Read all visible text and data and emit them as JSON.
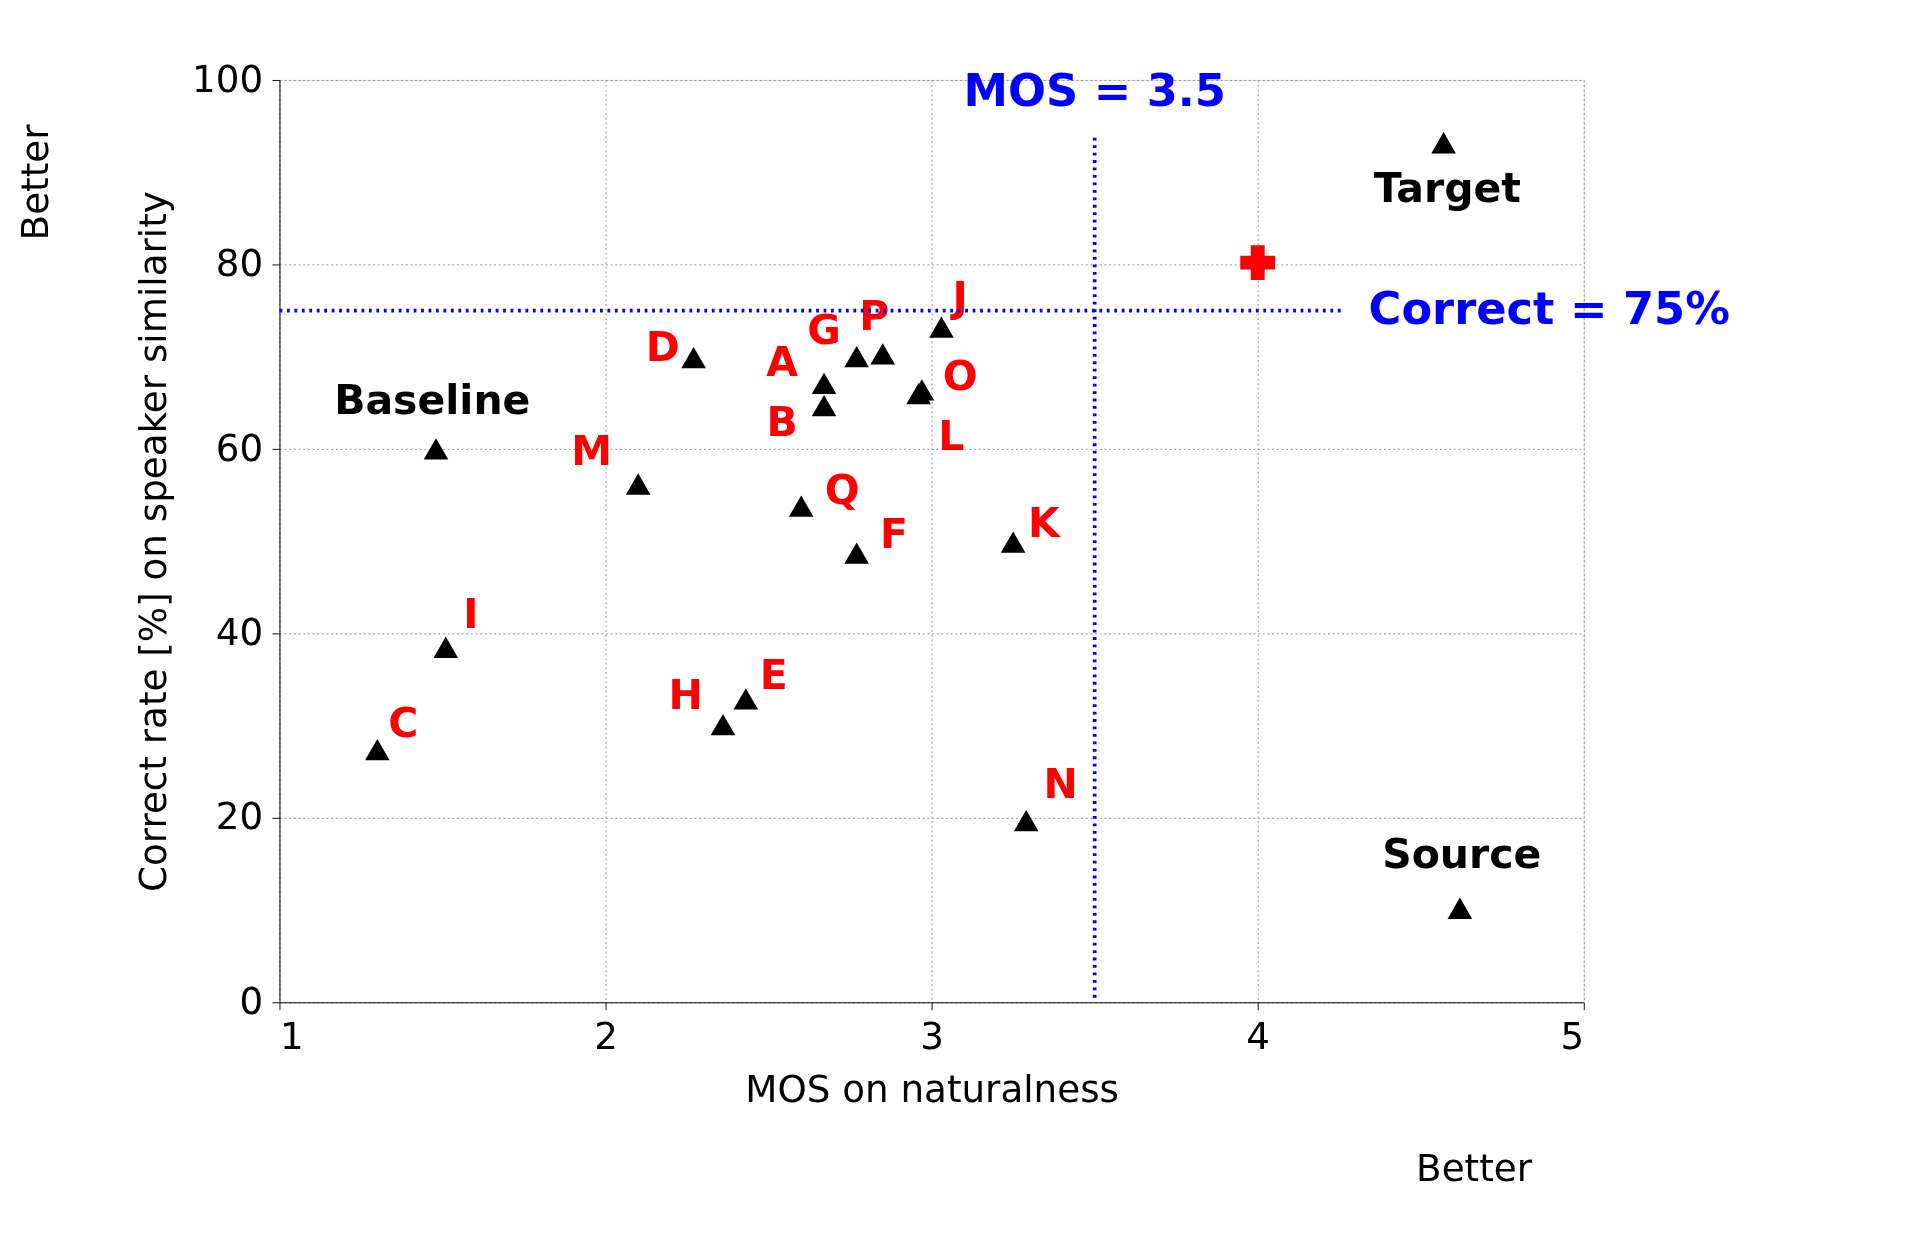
{
  "chart_data": {
    "type": "scatter",
    "xlabel": "MOS on naturalness",
    "ylabel": "Correct rate [%] on speaker similarity",
    "xlim": [
      1,
      5
    ],
    "ylim": [
      0,
      100
    ],
    "xticks": [
      1,
      2,
      3,
      4,
      5
    ],
    "yticks": [
      0,
      20,
      40,
      60,
      80,
      100
    ],
    "grid": true,
    "marker": "triangle",
    "series": [
      {
        "name": "Baseline",
        "color": "#000000",
        "x": [
          1.48
        ],
        "values": [
          60
        ]
      },
      {
        "name": "C",
        "color": "#000000",
        "x": [
          1.3
        ],
        "values": [
          27.4
        ]
      },
      {
        "name": "I",
        "color": "#000000",
        "x": [
          1.51
        ],
        "values": [
          38.5
        ]
      },
      {
        "name": "M",
        "color": "#000000",
        "x": [
          2.1
        ],
        "values": [
          56.2
        ]
      },
      {
        "name": "D",
        "color": "#000000",
        "x": [
          2.27
        ],
        "values": [
          69.9
        ]
      },
      {
        "name": "H",
        "color": "#000000",
        "x": [
          2.36
        ],
        "values": [
          30.1
        ]
      },
      {
        "name": "E",
        "color": "#000000",
        "x": [
          2.43
        ],
        "values": [
          32.9
        ]
      },
      {
        "name": "Q",
        "color": "#000000",
        "x": [
          2.6
        ],
        "values": [
          53.8
        ]
      },
      {
        "name": "A",
        "color": "#000000",
        "x": [
          2.67
        ],
        "values": [
          67.1
        ]
      },
      {
        "name": "B",
        "color": "#000000",
        "x": [
          2.67
        ],
        "values": [
          64.7
        ]
      },
      {
        "name": "G",
        "color": "#000000",
        "x": [
          2.77
        ],
        "values": [
          70.0
        ]
      },
      {
        "name": "P",
        "color": "#000000",
        "x": [
          2.85
        ],
        "values": [
          70.3
        ]
      },
      {
        "name": "F",
        "color": "#000000",
        "x": [
          2.77
        ],
        "values": [
          48.7
        ]
      },
      {
        "name": "O",
        "color": "#000000",
        "x": [
          2.97
        ],
        "values": [
          66.4
        ]
      },
      {
        "name": "L",
        "color": "#000000",
        "x": [
          2.96
        ],
        "values": [
          66.0
        ]
      },
      {
        "name": "J",
        "color": "#000000",
        "x": [
          3.03
        ],
        "values": [
          73.2
        ]
      },
      {
        "name": "K",
        "color": "#000000",
        "x": [
          3.25
        ],
        "values": [
          49.9
        ]
      },
      {
        "name": "N",
        "color": "#000000",
        "x": [
          3.29
        ],
        "values": [
          19.7
        ]
      },
      {
        "name": "Target",
        "color": "#000000",
        "x": [
          4.57
        ],
        "values": [
          93.2
        ]
      },
      {
        "name": "Source",
        "color": "#000000",
        "x": [
          4.62
        ],
        "values": [
          10.2
        ]
      },
      {
        "color": "#ff0000",
        "marker": "cross",
        "x": [
          4.0
        ],
        "values": [
          80.2
        ]
      }
    ],
    "ref_lines": [
      {
        "axis": "x",
        "value": 3.5,
        "label": "MOS = 3.5",
        "color": "#0000ff",
        "line_style": "dotted"
      },
      {
        "axis": "y",
        "value": 75,
        "label": "Correct = 75%",
        "color": "#0000ff",
        "line_style": "dotted"
      }
    ],
    "annotations": [
      "Better",
      "Better"
    ]
  }
}
